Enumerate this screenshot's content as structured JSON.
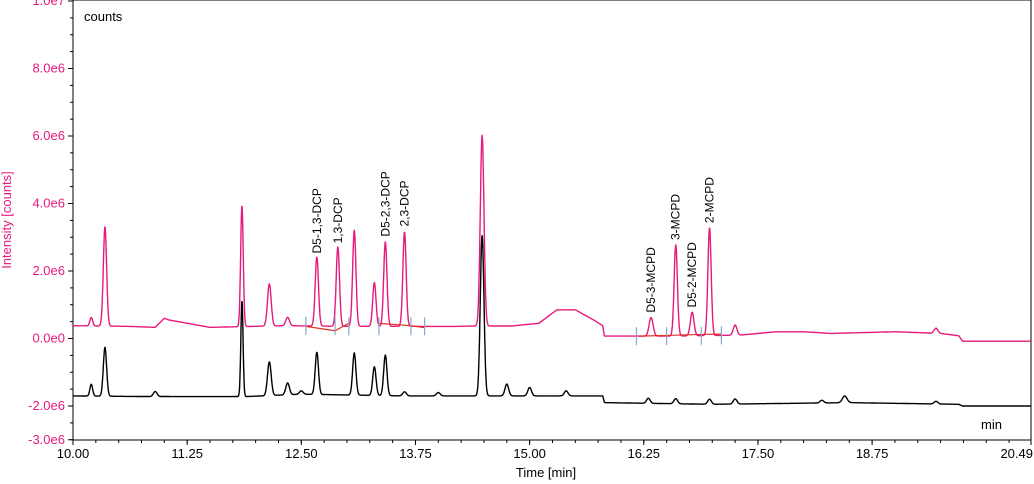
{
  "chart_data": {
    "type": "line",
    "corner_label": "counts",
    "xunit_label": "min",
    "xlabel": "Time [min]",
    "ylabel": "Intensity [counts]",
    "xlim": [
      10.0,
      20.49
    ],
    "ylim": [
      -3000000,
      10000000
    ],
    "x_ticks": [
      {
        "value": 10.0,
        "label": "10.00"
      },
      {
        "value": 11.25,
        "label": "11.25"
      },
      {
        "value": 12.5,
        "label": "12.50"
      },
      {
        "value": 13.75,
        "label": "13.75"
      },
      {
        "value": 15.0,
        "label": "15.00"
      },
      {
        "value": 16.25,
        "label": "16.25"
      },
      {
        "value": 17.5,
        "label": "17.50"
      },
      {
        "value": 18.75,
        "label": "18.75"
      },
      {
        "value": 20.49,
        "label": "20.49"
      }
    ],
    "y_ticks": [
      {
        "value": 10000000,
        "label": "1.0e7"
      },
      {
        "value": 8000000,
        "label": "8.0e6"
      },
      {
        "value": 6000000,
        "label": "6.0e6"
      },
      {
        "value": 4000000,
        "label": "4.0e6"
      },
      {
        "value": 2000000,
        "label": "2.0e6"
      },
      {
        "value": 0,
        "label": "0.0e0"
      },
      {
        "value": -2000000,
        "label": "-2.0e6"
      },
      {
        "value": -3000000,
        "label": "-3.0e6"
      }
    ],
    "annotations": [
      {
        "label": "D5-1,3-DCP",
        "x": 12.67,
        "y": 2400000
      },
      {
        "label": "1,3-DCP",
        "x": 12.9,
        "y": 2700000
      },
      {
        "label": "D5-2,3-DCP",
        "x": 13.42,
        "y": 2900000
      },
      {
        "label": "2,3-DCP",
        "x": 13.63,
        "y": 3200000
      },
      {
        "label": "D5-3-MCPD",
        "x": 16.33,
        "y": 650000
      },
      {
        "label": "3-MCPD",
        "x": 16.6,
        "y": 2800000
      },
      {
        "label": "D5-2-MCPD",
        "x": 16.78,
        "y": 800000
      },
      {
        "label": "2-MCPD",
        "x": 16.97,
        "y": 3300000
      }
    ],
    "series": [
      {
        "color": "#e8197d",
        "baseline": [
          [
            10.0,
            380000
          ],
          [
            10.6,
            360000
          ],
          [
            10.9,
            330000
          ],
          [
            11.0,
            600000
          ],
          [
            11.05,
            550000
          ],
          [
            11.5,
            330000
          ],
          [
            12.3,
            380000
          ],
          [
            13.0,
            360000
          ],
          [
            14.2,
            360000
          ],
          [
            14.4,
            370000
          ],
          [
            14.8,
            370000
          ],
          [
            15.1,
            450000
          ],
          [
            15.3,
            850000
          ],
          [
            15.5,
            850000
          ],
          [
            15.7,
            550000
          ],
          [
            15.8,
            380000
          ],
          [
            15.82,
            70000
          ],
          [
            16.5,
            70000
          ],
          [
            17.3,
            100000
          ],
          [
            17.7,
            200000
          ],
          [
            18.0,
            200000
          ],
          [
            18.3,
            150000
          ],
          [
            19.0,
            200000
          ],
          [
            19.5,
            150000
          ],
          [
            19.7,
            80000
          ],
          [
            19.74,
            -80000
          ],
          [
            20.49,
            -80000
          ]
        ],
        "peaks": [
          {
            "x": 10.2,
            "h": 250000,
            "w": 0.015
          },
          {
            "x": 10.35,
            "h": 2950000,
            "w": 0.018
          },
          {
            "x": 11.85,
            "h": 3600000,
            "w": 0.014
          },
          {
            "x": 12.15,
            "h": 1250000,
            "w": 0.02
          },
          {
            "x": 12.35,
            "h": 250000,
            "w": 0.02
          },
          {
            "x": 12.67,
            "h": 2050000,
            "w": 0.018
          },
          {
            "x": 12.9,
            "h": 2350000,
            "w": 0.018
          },
          {
            "x": 13.08,
            "h": 2850000,
            "w": 0.018
          },
          {
            "x": 13.3,
            "h": 1300000,
            "w": 0.018
          },
          {
            "x": 13.42,
            "h": 2500000,
            "w": 0.018
          },
          {
            "x": 13.63,
            "h": 2800000,
            "w": 0.018
          },
          {
            "x": 14.48,
            "h": 5650000,
            "w": 0.02
          },
          {
            "x": 16.33,
            "h": 550000,
            "w": 0.022
          },
          {
            "x": 16.6,
            "h": 2700000,
            "w": 0.018
          },
          {
            "x": 16.78,
            "h": 700000,
            "w": 0.02
          },
          {
            "x": 16.97,
            "h": 3200000,
            "w": 0.018
          },
          {
            "x": 17.25,
            "h": 300000,
            "w": 0.02
          },
          {
            "x": 19.45,
            "h": 150000,
            "w": 0.02
          }
        ]
      },
      {
        "color": "#000000",
        "baseline": [
          [
            10.0,
            -1700000
          ],
          [
            10.8,
            -1720000
          ],
          [
            11.9,
            -1720000
          ],
          [
            12.5,
            -1650000
          ],
          [
            13.6,
            -1700000
          ],
          [
            14.3,
            -1700000
          ],
          [
            15.8,
            -1700000
          ],
          [
            15.82,
            -1900000
          ],
          [
            17.0,
            -1950000
          ],
          [
            18.5,
            -1900000
          ],
          [
            19.7,
            -1950000
          ],
          [
            19.74,
            -2000000
          ],
          [
            20.49,
            -2000000
          ]
        ],
        "peaks": [
          {
            "x": 10.2,
            "h": 350000,
            "w": 0.015
          },
          {
            "x": 10.35,
            "h": 1450000,
            "w": 0.018
          },
          {
            "x": 10.9,
            "h": 150000,
            "w": 0.02
          },
          {
            "x": 11.85,
            "h": 2850000,
            "w": 0.012
          },
          {
            "x": 12.15,
            "h": 1000000,
            "w": 0.02
          },
          {
            "x": 12.35,
            "h": 350000,
            "w": 0.02
          },
          {
            "x": 12.5,
            "h": 100000,
            "w": 0.02
          },
          {
            "x": 12.67,
            "h": 1250000,
            "w": 0.018
          },
          {
            "x": 13.08,
            "h": 1250000,
            "w": 0.018
          },
          {
            "x": 13.3,
            "h": 850000,
            "w": 0.018
          },
          {
            "x": 13.42,
            "h": 1200000,
            "w": 0.018
          },
          {
            "x": 13.63,
            "h": 120000,
            "w": 0.02
          },
          {
            "x": 14.0,
            "h": 100000,
            "w": 0.02
          },
          {
            "x": 14.48,
            "h": 4750000,
            "w": 0.02
          },
          {
            "x": 14.75,
            "h": 350000,
            "w": 0.02
          },
          {
            "x": 15.0,
            "h": 250000,
            "w": 0.02
          },
          {
            "x": 15.4,
            "h": 150000,
            "w": 0.02
          },
          {
            "x": 16.3,
            "h": 150000,
            "w": 0.02
          },
          {
            "x": 16.6,
            "h": 150000,
            "w": 0.02
          },
          {
            "x": 16.97,
            "h": 150000,
            "w": 0.02
          },
          {
            "x": 17.25,
            "h": 150000,
            "w": 0.02
          },
          {
            "x": 18.2,
            "h": 80000,
            "w": 0.02
          },
          {
            "x": 18.45,
            "h": 200000,
            "w": 0.025
          },
          {
            "x": 19.45,
            "h": 80000,
            "w": 0.02
          }
        ]
      }
    ],
    "integration_baselines": {
      "color": "#e03020",
      "tick_color": "#8aa8cc",
      "segments": [
        {
          "from": [
            12.55,
            360000
          ],
          "to": [
            12.87,
            230000
          ]
        },
        {
          "from": [
            12.87,
            230000
          ],
          "to": [
            13.02,
            450000
          ]
        },
        {
          "from": [
            13.35,
            450000
          ],
          "to": [
            13.7,
            380000
          ]
        },
        {
          "from": [
            13.7,
            380000
          ],
          "to": [
            13.85,
            320000
          ]
        },
        {
          "from": [
            16.2,
            70000
          ],
          "to": [
            16.5,
            90000
          ]
        },
        {
          "from": [
            16.5,
            90000
          ],
          "to": [
            16.88,
            120000
          ]
        },
        {
          "from": [
            16.88,
            120000
          ],
          "to": [
            17.1,
            130000
          ]
        }
      ],
      "ticks": [
        12.55,
        12.87,
        13.02,
        13.35,
        13.7,
        13.85,
        16.17,
        16.5,
        16.88,
        17.1
      ]
    }
  }
}
